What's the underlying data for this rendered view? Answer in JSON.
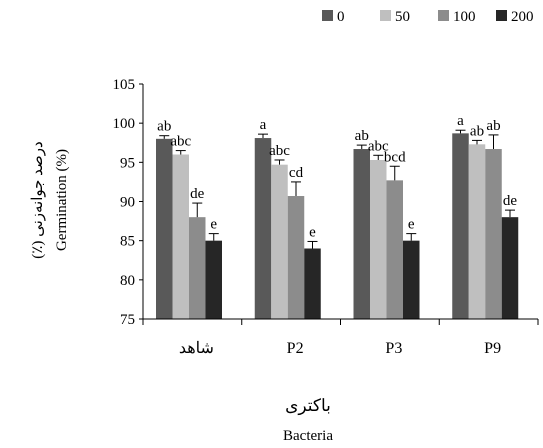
{
  "chart_data": {
    "type": "bar",
    "categories": [
      "شاهد",
      "P2",
      "P3",
      "P9"
    ],
    "series": [
      {
        "name": "0",
        "color": "#595959",
        "values": [
          98.0,
          98.1,
          96.7,
          98.7
        ],
        "errors": [
          0.4,
          0.5,
          0.5,
          0.4
        ],
        "letters": [
          "ab",
          "a",
          "ab",
          "a"
        ]
      },
      {
        "name": "50",
        "color": "#bfbfbf",
        "values": [
          96.0,
          94.7,
          95.3,
          97.3
        ],
        "errors": [
          0.5,
          0.6,
          0.6,
          0.5
        ],
        "letters": [
          "abc",
          "abc",
          "abc",
          "ab"
        ]
      },
      {
        "name": "100",
        "color": "#8c8c8c",
        "values": [
          88.0,
          90.7,
          92.7,
          96.7
        ],
        "errors": [
          1.8,
          1.8,
          1.8,
          1.8
        ],
        "letters": [
          "de",
          "cd",
          "bcd",
          "ab"
        ]
      },
      {
        "name": "200",
        "color": "#262626",
        "values": [
          85.0,
          84.0,
          85.0,
          88.0
        ],
        "errors": [
          0.9,
          0.9,
          0.9,
          0.9
        ],
        "letters": [
          "e",
          "e",
          "e",
          "de"
        ]
      }
    ],
    "ylabel_fa": "درصد جوانه‌زنی (٪)",
    "ylabel_en": "Germination (%)",
    "xlabel_fa": "باکتری",
    "xlabel_en": "Bacteria",
    "ylim": [
      75,
      105
    ],
    "yticks": [
      75,
      80,
      85,
      90,
      95,
      100,
      105
    ],
    "grid": false,
    "legend_position": "top-right"
  }
}
